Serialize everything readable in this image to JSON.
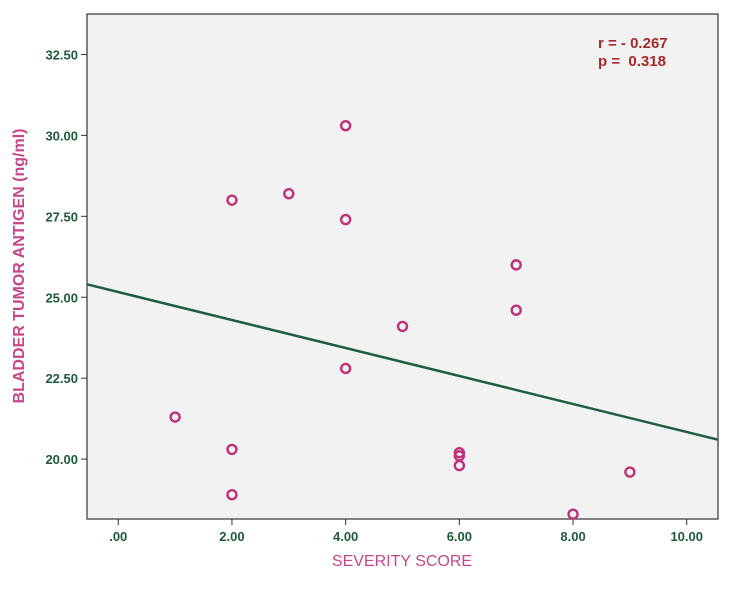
{
  "colors": {
    "axis_text": "#1f5a3a",
    "axis_title": "#c8458a",
    "marker": "#c0307a",
    "fit_line": "#1d5e3f",
    "annotation": "#a62a2a",
    "plot_background": "#f2f2f2",
    "frame": "#333333"
  },
  "chart_data": {
    "type": "scatter",
    "title": "",
    "xlabel": "SEVERITY SCORE",
    "ylabel": "BLADDER TUMOR ANTIGEN (ng/ml)",
    "xlim": [
      -0.55,
      10.55
    ],
    "ylim": [
      18.15,
      33.75
    ],
    "xticks": [
      0,
      2,
      4,
      6,
      8,
      10
    ],
    "xtick_labels": [
      ".00",
      "2.00",
      "4.00",
      "6.00",
      "8.00",
      "10.00"
    ],
    "yticks": [
      20,
      22.5,
      25,
      27.5,
      30,
      32.5
    ],
    "ytick_labels": [
      "20.00",
      "22.50",
      "25.00",
      "27.50",
      "30.00",
      "32.50"
    ],
    "points": [
      {
        "x": 1,
        "y": 21.3
      },
      {
        "x": 2,
        "y": 28.0
      },
      {
        "x": 2,
        "y": 20.3
      },
      {
        "x": 2,
        "y": 18.9
      },
      {
        "x": 3,
        "y": 28.2
      },
      {
        "x": 4,
        "y": 30.3
      },
      {
        "x": 4,
        "y": 27.4
      },
      {
        "x": 4,
        "y": 22.8
      },
      {
        "x": 5,
        "y": 24.1
      },
      {
        "x": 6,
        "y": 20.2
      },
      {
        "x": 6,
        "y": 20.1
      },
      {
        "x": 6,
        "y": 19.8
      },
      {
        "x": 7,
        "y": 26.0
      },
      {
        "x": 7,
        "y": 24.6
      },
      {
        "x": 8,
        "y": 18.3
      },
      {
        "x": 9,
        "y": 19.6
      }
    ],
    "fit_line": {
      "x": [
        -0.55,
        10.55
      ],
      "y": [
        25.4,
        20.6
      ]
    },
    "grid": false,
    "annotations": {
      "r_text": "r = - 0.267",
      "p_text": "p =  0.318"
    }
  }
}
